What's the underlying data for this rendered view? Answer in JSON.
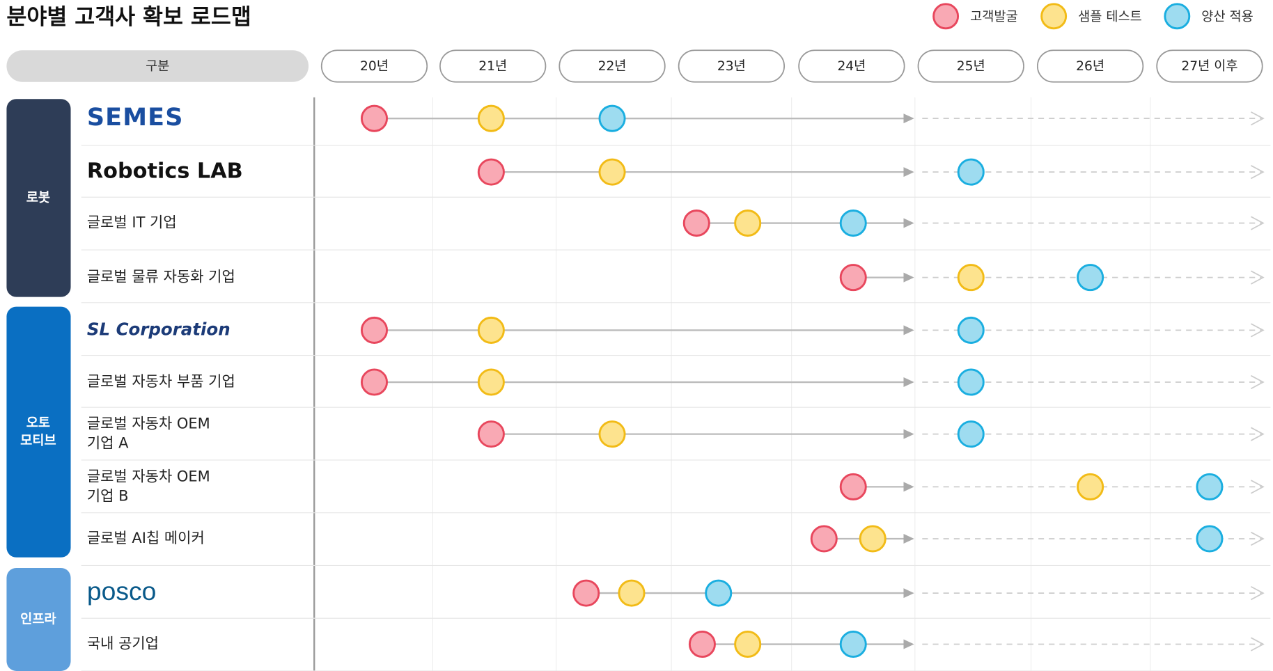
{
  "title": "분야별 고객사 확보 로드맵",
  "legend": [
    "고객발굴",
    "샘플 테스트",
    "양산 적용"
  ],
  "header": {
    "label": "구분",
    "years": [
      "20년",
      "21년",
      "22년",
      "23년",
      "24년",
      "25년",
      "26년",
      "27년 이후"
    ]
  },
  "groups": [
    {
      "label": [
        "로봇"
      ],
      "rows": [
        {
          "label": [
            "SEMES"
          ]
        },
        {
          "label": [
            "Robotics LAB"
          ]
        },
        {
          "label": [
            "글로벌 IT 기업"
          ]
        },
        {
          "label": [
            "글로벌 물류 자동화 기업"
          ]
        }
      ]
    },
    {
      "label": [
        "오토",
        "모티브"
      ],
      "rows": [
        {
          "label": [
            "SL Corporation"
          ]
        },
        {
          "label": [
            "글로벌 자동차 부품 기업"
          ]
        },
        {
          "label": [
            "글로벌 자동차 OEM",
            "기업 A"
          ]
        },
        {
          "label": [
            "글로벌 자동차 OEM",
            "기업 B"
          ]
        },
        {
          "label": [
            "글로벌 AI칩 메이커"
          ]
        }
      ]
    },
    {
      "label": [
        "인프라"
      ],
      "rows": [
        {
          "label": [
            "posco"
          ]
        },
        {
          "label": [
            "국내 공기업"
          ]
        }
      ]
    }
  ]
}
